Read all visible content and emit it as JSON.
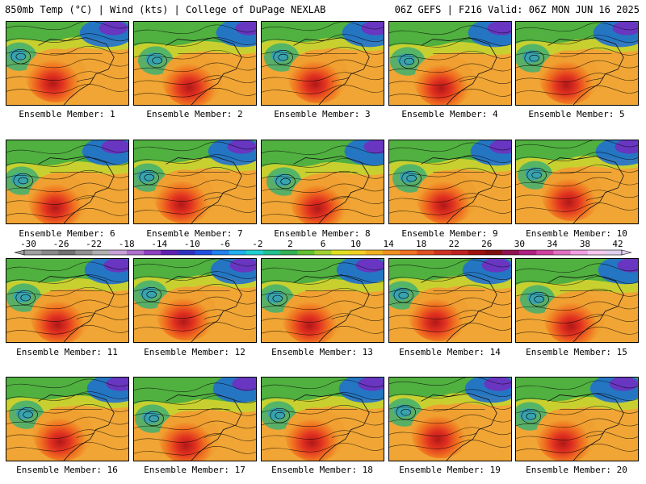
{
  "header": {
    "left": "850mb Temp (°C) | Wind (kts) | College of DuPage NEXLAB",
    "right": "06Z GEFS | F216 Valid: 06Z MON JUN 16 2025"
  },
  "members": [
    {
      "label": "Ensemble Member: 1"
    },
    {
      "label": "Ensemble Member: 2"
    },
    {
      "label": "Ensemble Member: 3"
    },
    {
      "label": "Ensemble Member: 4"
    },
    {
      "label": "Ensemble Member: 5"
    },
    {
      "label": "Ensemble Member: 6"
    },
    {
      "label": "Ensemble Member: 7"
    },
    {
      "label": "Ensemble Member: 8"
    },
    {
      "label": "Ensemble Member: 9"
    },
    {
      "label": "Ensemble Member: 10"
    },
    {
      "label": "Ensemble Member: 11"
    },
    {
      "label": "Ensemble Member: 12"
    },
    {
      "label": "Ensemble Member: 13"
    },
    {
      "label": "Ensemble Member: 14"
    },
    {
      "label": "Ensemble Member: 15"
    },
    {
      "label": "Ensemble Member: 16"
    },
    {
      "label": "Ensemble Member: 17"
    },
    {
      "label": "Ensemble Member: 18"
    },
    {
      "label": "Ensemble Member: 19"
    },
    {
      "label": "Ensemble Member: 20"
    }
  ],
  "colorbar": {
    "ticks": [
      "-30",
      "-26",
      "-22",
      "-18",
      "-14",
      "-10",
      "-6",
      "-2",
      "2",
      "6",
      "10",
      "14",
      "18",
      "22",
      "26",
      "30",
      "34",
      "38",
      "42"
    ],
    "colors": [
      "#a0a0a0",
      "#888888",
      "#707070",
      "#909090",
      "#b0b0b0",
      "#c8a0d8",
      "#b070d0",
      "#9040c0",
      "#6020b0",
      "#3030c0",
      "#2050e0",
      "#2080f0",
      "#20b0f0",
      "#20d0d0",
      "#20c090",
      "#30b050",
      "#60c030",
      "#a0d030",
      "#e0e020",
      "#f0d020",
      "#f0b020",
      "#f09020",
      "#f07020",
      "#e05020",
      "#d03020",
      "#c02020",
      "#a01010",
      "#801010",
      "#901050",
      "#b02080",
      "#d040a0",
      "#e070c0",
      "#f0a0e0",
      "#f8c8f0",
      "#e0d0f0"
    ]
  }
}
